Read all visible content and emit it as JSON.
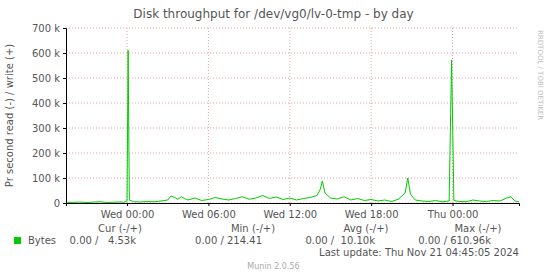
{
  "chart_data": {
    "type": "line",
    "title": "Disk throughput for /dev/vg0/lv-0-tmp - by day",
    "y_label": "Pr second read (-) / write (+)",
    "side_text": "RRDTOOL / TOBI OETIKER",
    "last_update": "Last update: Thu Nov 21 04:45:05 2024",
    "footer": "Munin 2.0.56",
    "x": [
      -4.5,
      -4,
      -3.5,
      -3,
      -2.5,
      -2,
      -1.5,
      -1,
      -0.5,
      -0.25,
      0,
      0.08,
      0.17,
      0.5,
      1,
      1.5,
      2,
      2.5,
      3,
      3.25,
      3.5,
      3.75,
      4,
      4.25,
      4.5,
      5,
      5.5,
      6,
      6.5,
      7,
      7.5,
      8,
      8.5,
      9,
      9.5,
      10,
      10.5,
      11,
      11.5,
      12,
      12.5,
      13,
      13.5,
      14,
      14.25,
      14.4,
      14.6,
      15,
      15.5,
      16,
      16.5,
      17,
      17.5,
      18,
      18.5,
      19,
      19.5,
      20,
      20.5,
      20.7,
      20.9,
      21.25,
      21.75,
      22.25,
      22.75,
      23.25,
      23.75,
      23.93,
      24.1,
      24.5,
      25,
      25.5,
      26,
      26.5,
      27,
      27.5,
      28,
      28.3,
      28.6,
      28.9
    ],
    "series": [
      {
        "name": "Bytes",
        "color": "#00cc00",
        "values": [
          3000,
          2500,
          4000,
          2000,
          3500,
          5000,
          2000,
          3000,
          4000,
          3000,
          8000,
          610960,
          12000,
          5000,
          4000,
          6000,
          5000,
          8000,
          12000,
          28000,
          22000,
          15000,
          25000,
          18000,
          12000,
          20000,
          10000,
          14000,
          22000,
          16000,
          12000,
          18000,
          25000,
          15000,
          20000,
          30000,
          18000,
          24000,
          14000,
          20000,
          12000,
          18000,
          22000,
          30000,
          55000,
          88000,
          40000,
          20000,
          16000,
          25000,
          12000,
          18000,
          10000,
          14000,
          8000,
          12000,
          6000,
          15000,
          40000,
          100000,
          35000,
          12000,
          8000,
          6000,
          10000,
          5000,
          8000,
          572000,
          10000,
          6000,
          5000,
          12000,
          8000,
          6000,
          10000,
          8000,
          20000,
          25000,
          8000,
          4530
        ]
      }
    ],
    "xlim": [
      -4.5,
      28.9
    ],
    "xticks": [
      {
        "value": 0,
        "label": "Wed 00:00"
      },
      {
        "value": 6,
        "label": "Wed 06:00"
      },
      {
        "value": 12,
        "label": "Wed 12:00"
      },
      {
        "value": 18,
        "label": "Wed 18:00"
      },
      {
        "value": 24,
        "label": "Thu 00:00"
      }
    ],
    "ylim": [
      0,
      700000
    ],
    "yticks": [
      0,
      {
        "value": 100000,
        "label": "100 k"
      },
      {
        "value": 200000,
        "label": "200 k"
      },
      {
        "value": 300000,
        "label": "300 k"
      },
      {
        "value": 400000,
        "label": "400 k"
      },
      {
        "value": 500000,
        "label": "500 k"
      },
      {
        "value": 600000,
        "label": "600 k"
      },
      {
        "value": 700000,
        "label": "700 k"
      }
    ],
    "grid": true,
    "legend_stats": {
      "columns": [
        "Cur (-/+)",
        "Min (-/+)",
        "Avg (-/+)",
        "Max (-/+)"
      ],
      "values": [
        "0.00 /   4.53k",
        "0.00 / 214.41",
        "0.00 /  10.10k",
        "0.00 / 610.96k"
      ]
    }
  }
}
